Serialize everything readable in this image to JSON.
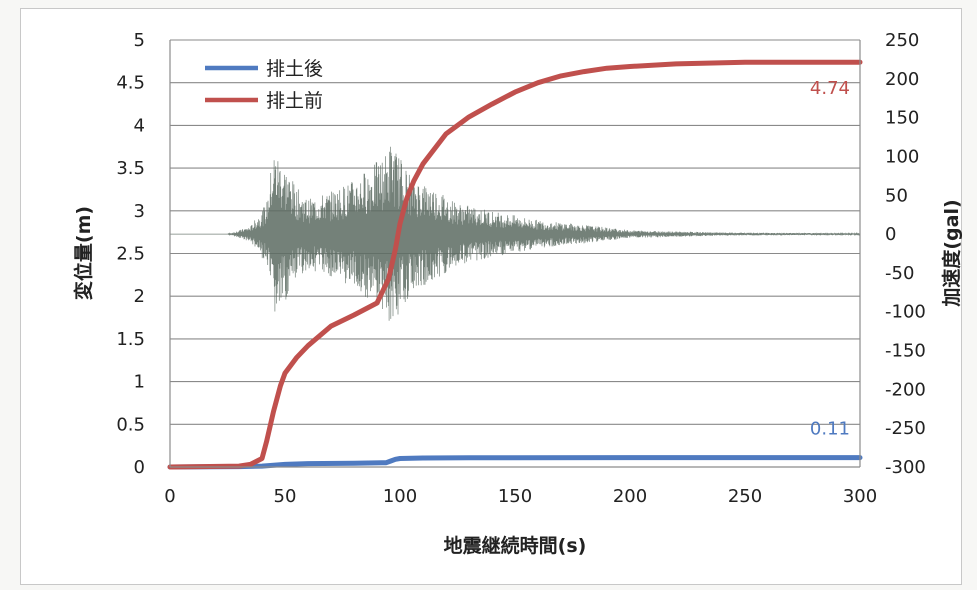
{
  "chart_data": {
    "type": "line",
    "title": "",
    "xlabel": "地震継続時間(s)",
    "ylabel": "変位量(m)",
    "y2label": "加速度(gal)",
    "xlim": [
      0,
      300
    ],
    "ylim": [
      0,
      5
    ],
    "y2lim": [
      -300,
      250
    ],
    "x_ticks": [
      "0",
      "50",
      "100",
      "150",
      "200",
      "250",
      "300"
    ],
    "y_ticks": [
      "0",
      "0.5",
      "1",
      "1.5",
      "2",
      "2.5",
      "3",
      "3.5",
      "4",
      "4.5",
      "5"
    ],
    "y2_ticks": [
      "-300",
      "-250",
      "-200",
      "-150",
      "-100",
      "-50",
      "0",
      "50",
      "100",
      "150",
      "200",
      "250"
    ],
    "grid": "horizontal",
    "legend_position": "top-left",
    "colors": {
      "after": "#4f7ac0",
      "before": "#c0504d",
      "accel": "#5c6b62"
    },
    "series": [
      {
        "name": "排土後",
        "axis": "left",
        "x": [
          0,
          30,
          40,
          45,
          50,
          60,
          80,
          94,
          96,
          98,
          100,
          110,
          130,
          200,
          300
        ],
        "y": [
          0,
          0.005,
          0.01,
          0.02,
          0.03,
          0.04,
          0.045,
          0.05,
          0.07,
          0.09,
          0.1,
          0.105,
          0.108,
          0.11,
          0.11
        ]
      },
      {
        "name": "排土前",
        "axis": "left",
        "x": [
          0,
          30,
          35,
          40,
          42,
          45,
          48,
          50,
          55,
          60,
          70,
          80,
          90,
          95,
          98,
          100,
          103,
          106,
          110,
          120,
          130,
          140,
          150,
          160,
          170,
          180,
          190,
          200,
          220,
          250,
          270,
          300
        ],
        "y": [
          0,
          0.01,
          0.03,
          0.1,
          0.3,
          0.65,
          0.95,
          1.1,
          1.28,
          1.42,
          1.65,
          1.78,
          1.92,
          2.2,
          2.55,
          2.85,
          3.15,
          3.35,
          3.55,
          3.9,
          4.1,
          4.25,
          4.39,
          4.5,
          4.58,
          4.63,
          4.67,
          4.69,
          4.72,
          4.74,
          4.74,
          4.74
        ]
      },
      {
        "name": "加速度",
        "axis": "right",
        "x": [
          0,
          25,
          35,
          42,
          45,
          48,
          55,
          60,
          70,
          80,
          88,
          93,
          96,
          100,
          105,
          115,
          125,
          140,
          160,
          180,
          200,
          240,
          300
        ],
        "y": [
          0,
          0,
          10,
          40,
          110,
          100,
          60,
          45,
          55,
          70,
          90,
          100,
          120,
          100,
          75,
          60,
          40,
          30,
          18,
          12,
          5,
          2,
          1
        ]
      }
    ],
    "annotations": [
      {
        "text": "4.74",
        "x": 295,
        "y": 4.74
      },
      {
        "text": "0.11",
        "x": 295,
        "y": 0.11
      }
    ]
  }
}
